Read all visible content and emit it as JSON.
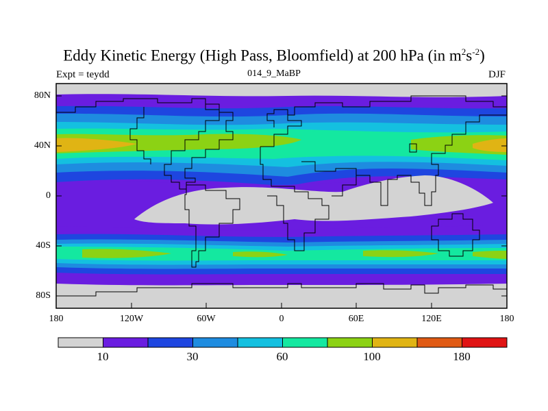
{
  "title_main": "Eddy Kinetic Energy (High Pass, Bloomfield) at 200 hPa (in m",
  "title_sup1": "2",
  "title_mid": "s",
  "title_sup2": "-2",
  "title_end": ")",
  "subtitle": "014_9_MaBP",
  "left_label": "Expt = teydd",
  "right_label": "DJF",
  "lat_labels": [
    "80N",
    "40N",
    "0",
    "40S",
    "80S"
  ],
  "lon_labels": [
    "180",
    "120W",
    "60W",
    "0",
    "60E",
    "120E",
    "180"
  ],
  "colorbar": {
    "colors": [
      "#d3d3d3",
      "#6a1de0",
      "#1e46e0",
      "#1e8ce0",
      "#14c0e0",
      "#14e8a0",
      "#8cd214",
      "#e0b414",
      "#e05a14",
      "#e01414"
    ],
    "labels": [
      "10",
      "30",
      "60",
      "100",
      "180"
    ]
  },
  "map": {
    "band_colors": {
      "grey": "#d3d3d3",
      "purple": "#6a1de0",
      "blue": "#1e46e0",
      "mid_blue": "#1e8ce0",
      "cyan": "#14c0e0",
      "teal": "#14e8a0",
      "green": "#8cd214",
      "orange": "#e0b414"
    }
  }
}
